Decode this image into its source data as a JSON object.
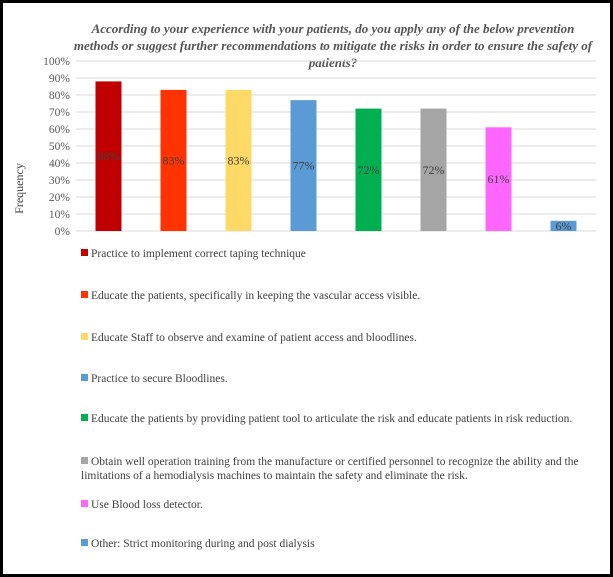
{
  "chart_data": {
    "type": "bar",
    "title": "According to your experience with your patients, do you apply any of the below prevention methods or suggest further recommendations to mitigate the risks in order to ensure the safety of patients?",
    "ylabel": "Frequency",
    "xlabel": "",
    "ylim": [
      0,
      100
    ],
    "yticks": [
      "0%",
      "10%",
      "20%",
      "30%",
      "40%",
      "50%",
      "60%",
      "70%",
      "80%",
      "90%",
      "100%"
    ],
    "grid": true,
    "legend_position": "bottom",
    "categories": [
      "Practice to implement correct taping technique",
      "Educate the patients, specifically in keeping the vascular access visible.",
      "Educate Staff to observe and examine of patient access and bloodlines.",
      "Practice to secure Bloodlines.",
      "Educate the patients by providing patient tool to articulate the risk and educate patients in risk reduction.",
      "Obtain well operation training from the manufacture or certified personnel to recognize the ability and the limitations of a hemodialysis machines to maintain the safety and eliminate the risk.",
      "Use Blood loss detector.",
      "Other: Strict monitoring during and post dialysis"
    ],
    "values": [
      88,
      83,
      83,
      77,
      72,
      72,
      61,
      6
    ],
    "labels": [
      "88%",
      "83%",
      "83%",
      "77%",
      "72%",
      "72%",
      "61%",
      "6%"
    ],
    "colors": [
      "#C00000",
      "#FF3300",
      "#FFD966",
      "#5B9BD5",
      "#00B050",
      "#A5A5A5",
      "#FF66FF",
      "#5B9BD5"
    ]
  }
}
